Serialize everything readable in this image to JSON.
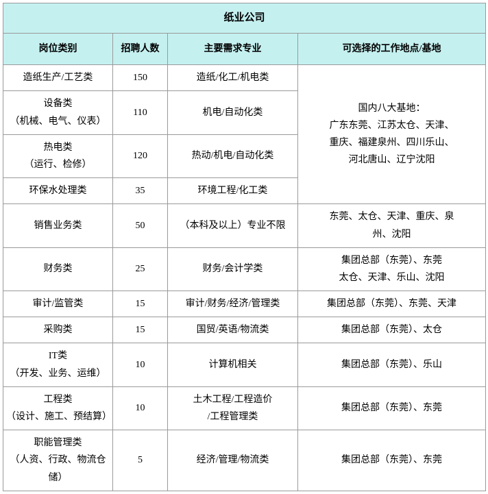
{
  "title": "纸业公司",
  "headers": {
    "category": "岗位类别",
    "count": "招聘人数",
    "major": "主要需求专业",
    "location": "可选择的工作地点/基地"
  },
  "merged_location": "国内八大基地：\n广东东莞、江苏太仓、天津、\n重庆、福建泉州、四川乐山、\n河北唐山、辽宁沈阳",
  "rows": [
    {
      "category": "造纸生产/工艺类",
      "count": "150",
      "major": "造纸/化工/机电类"
    },
    {
      "category": "设备类\n（机械、电气、仪表）",
      "count": "110",
      "major": "机电/自动化类"
    },
    {
      "category": "热电类\n（运行、检修）",
      "count": "120",
      "major": "热动/机电/自动化类"
    },
    {
      "category": "环保水处理类",
      "count": "35",
      "major": "环境工程/化工类"
    },
    {
      "category": "销售业务类",
      "count": "50",
      "major": "（本科及以上）专业不限",
      "location": "东莞、太仓、天津、重庆、泉\n州、沈阳"
    },
    {
      "category": "财务类",
      "count": "25",
      "major": "财务/会计学类",
      "location": "集团总部（东莞）、东莞\n太仓、天津、乐山、沈阳"
    },
    {
      "category": "审计/监管类",
      "count": "15",
      "major": "审计/财务/经济/管理类",
      "location": "集团总部（东莞）、东莞、天津"
    },
    {
      "category": "采购类",
      "count": "15",
      "major": "国贸/英语/物流类",
      "location": "集团总部（东莞）、太仓"
    },
    {
      "category": "IT类\n（开发、业务、运维）",
      "count": "10",
      "major": "计算机相关",
      "location": "集团总部（东莞）、乐山"
    },
    {
      "category": "工程类\n（设计、施工、预结算）",
      "count": "10",
      "major": "土木工程/工程造价\n/工程管理类",
      "location": "集团总部（东莞）、东莞"
    },
    {
      "category": "职能管理类\n（人资、行政、物流仓储）",
      "count": "5",
      "major": "经济/管理/物流类",
      "location": "集团总部（东莞）、东莞"
    }
  ],
  "style": {
    "header_bg": "#c5f0f0",
    "border_color": "#999999",
    "font_family": "SimSun",
    "title_fontsize": 15,
    "header_fontsize": 14,
    "cell_fontsize": 14
  }
}
